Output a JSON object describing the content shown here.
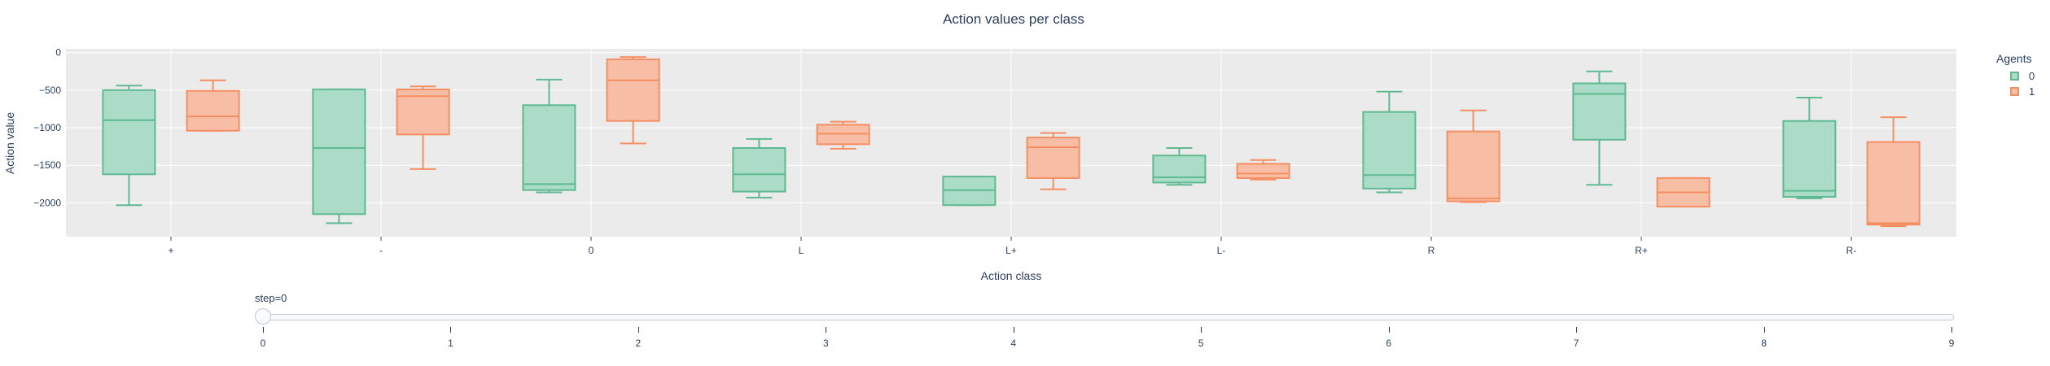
{
  "chart_data": {
    "type": "box",
    "title": "Action values per class",
    "xlabel": "Action class",
    "ylabel": "Action value",
    "categories": [
      "+",
      "-",
      "0",
      "L",
      "L+",
      "L-",
      "R",
      "R+",
      "R-"
    ],
    "ylim": [
      -2450,
      50
    ],
    "yticks": [
      0,
      -500,
      -1000,
      -1500,
      -2000
    ],
    "ytick_labels": [
      "0",
      "−500",
      "−1000",
      "−1500",
      "−2000"
    ],
    "grid": true,
    "legend_title": "Agents",
    "legend_position": "top-right",
    "series": [
      {
        "name": "0",
        "stroke": "#5fba92",
        "fill": "#aadcc8",
        "boxes": [
          {
            "min": -2030,
            "q1": -1620,
            "median": -900,
            "q3": -500,
            "max": -440
          },
          {
            "min": -2270,
            "q1": -2150,
            "median": -1270,
            "q3": -490,
            "max": -490
          },
          {
            "min": -1860,
            "q1": -1830,
            "median": -1750,
            "q3": -700,
            "max": -360
          },
          {
            "min": -1930,
            "q1": -1850,
            "median": -1620,
            "q3": -1270,
            "max": -1150
          },
          {
            "min": -2030,
            "q1": -2030,
            "median": -1830,
            "q3": -1650,
            "max": -1650
          },
          {
            "min": -1760,
            "q1": -1730,
            "median": -1660,
            "q3": -1370,
            "max": -1270
          },
          {
            "min": -1860,
            "q1": -1810,
            "median": -1630,
            "q3": -790,
            "max": -520
          },
          {
            "min": -1760,
            "q1": -1160,
            "median": -550,
            "q3": -410,
            "max": -250
          },
          {
            "min": -1940,
            "q1": -1920,
            "median": -1840,
            "q3": -910,
            "max": -600
          }
        ]
      },
      {
        "name": "1",
        "stroke": "#f58e63",
        "fill": "#f8bea5",
        "boxes": [
          {
            "min": -1040,
            "q1": -1040,
            "median": -850,
            "q3": -510,
            "max": -370
          },
          {
            "min": -1550,
            "q1": -1090,
            "median": -580,
            "q3": -490,
            "max": -450
          },
          {
            "min": -1210,
            "q1": -910,
            "median": -370,
            "q3": -90,
            "max": -60
          },
          {
            "min": -1280,
            "q1": -1220,
            "median": -1080,
            "q3": -960,
            "max": -920
          },
          {
            "min": -1820,
            "q1": -1670,
            "median": -1260,
            "q3": -1130,
            "max": -1070
          },
          {
            "min": -1690,
            "q1": -1670,
            "median": -1610,
            "q3": -1480,
            "max": -1430
          },
          {
            "min": -1990,
            "q1": -1980,
            "median": -1940,
            "q3": -1050,
            "max": -770
          },
          {
            "min": -2050,
            "q1": -2050,
            "median": -1860,
            "q3": -1670,
            "max": -1670
          },
          {
            "min": -2310,
            "q1": -2290,
            "median": -2270,
            "q3": -1190,
            "max": -860
          }
        ]
      }
    ]
  },
  "slider": {
    "label": "step=0",
    "value": 0,
    "ticks": [
      "0",
      "1",
      "2",
      "3",
      "4",
      "5",
      "6",
      "7",
      "8",
      "9"
    ]
  }
}
